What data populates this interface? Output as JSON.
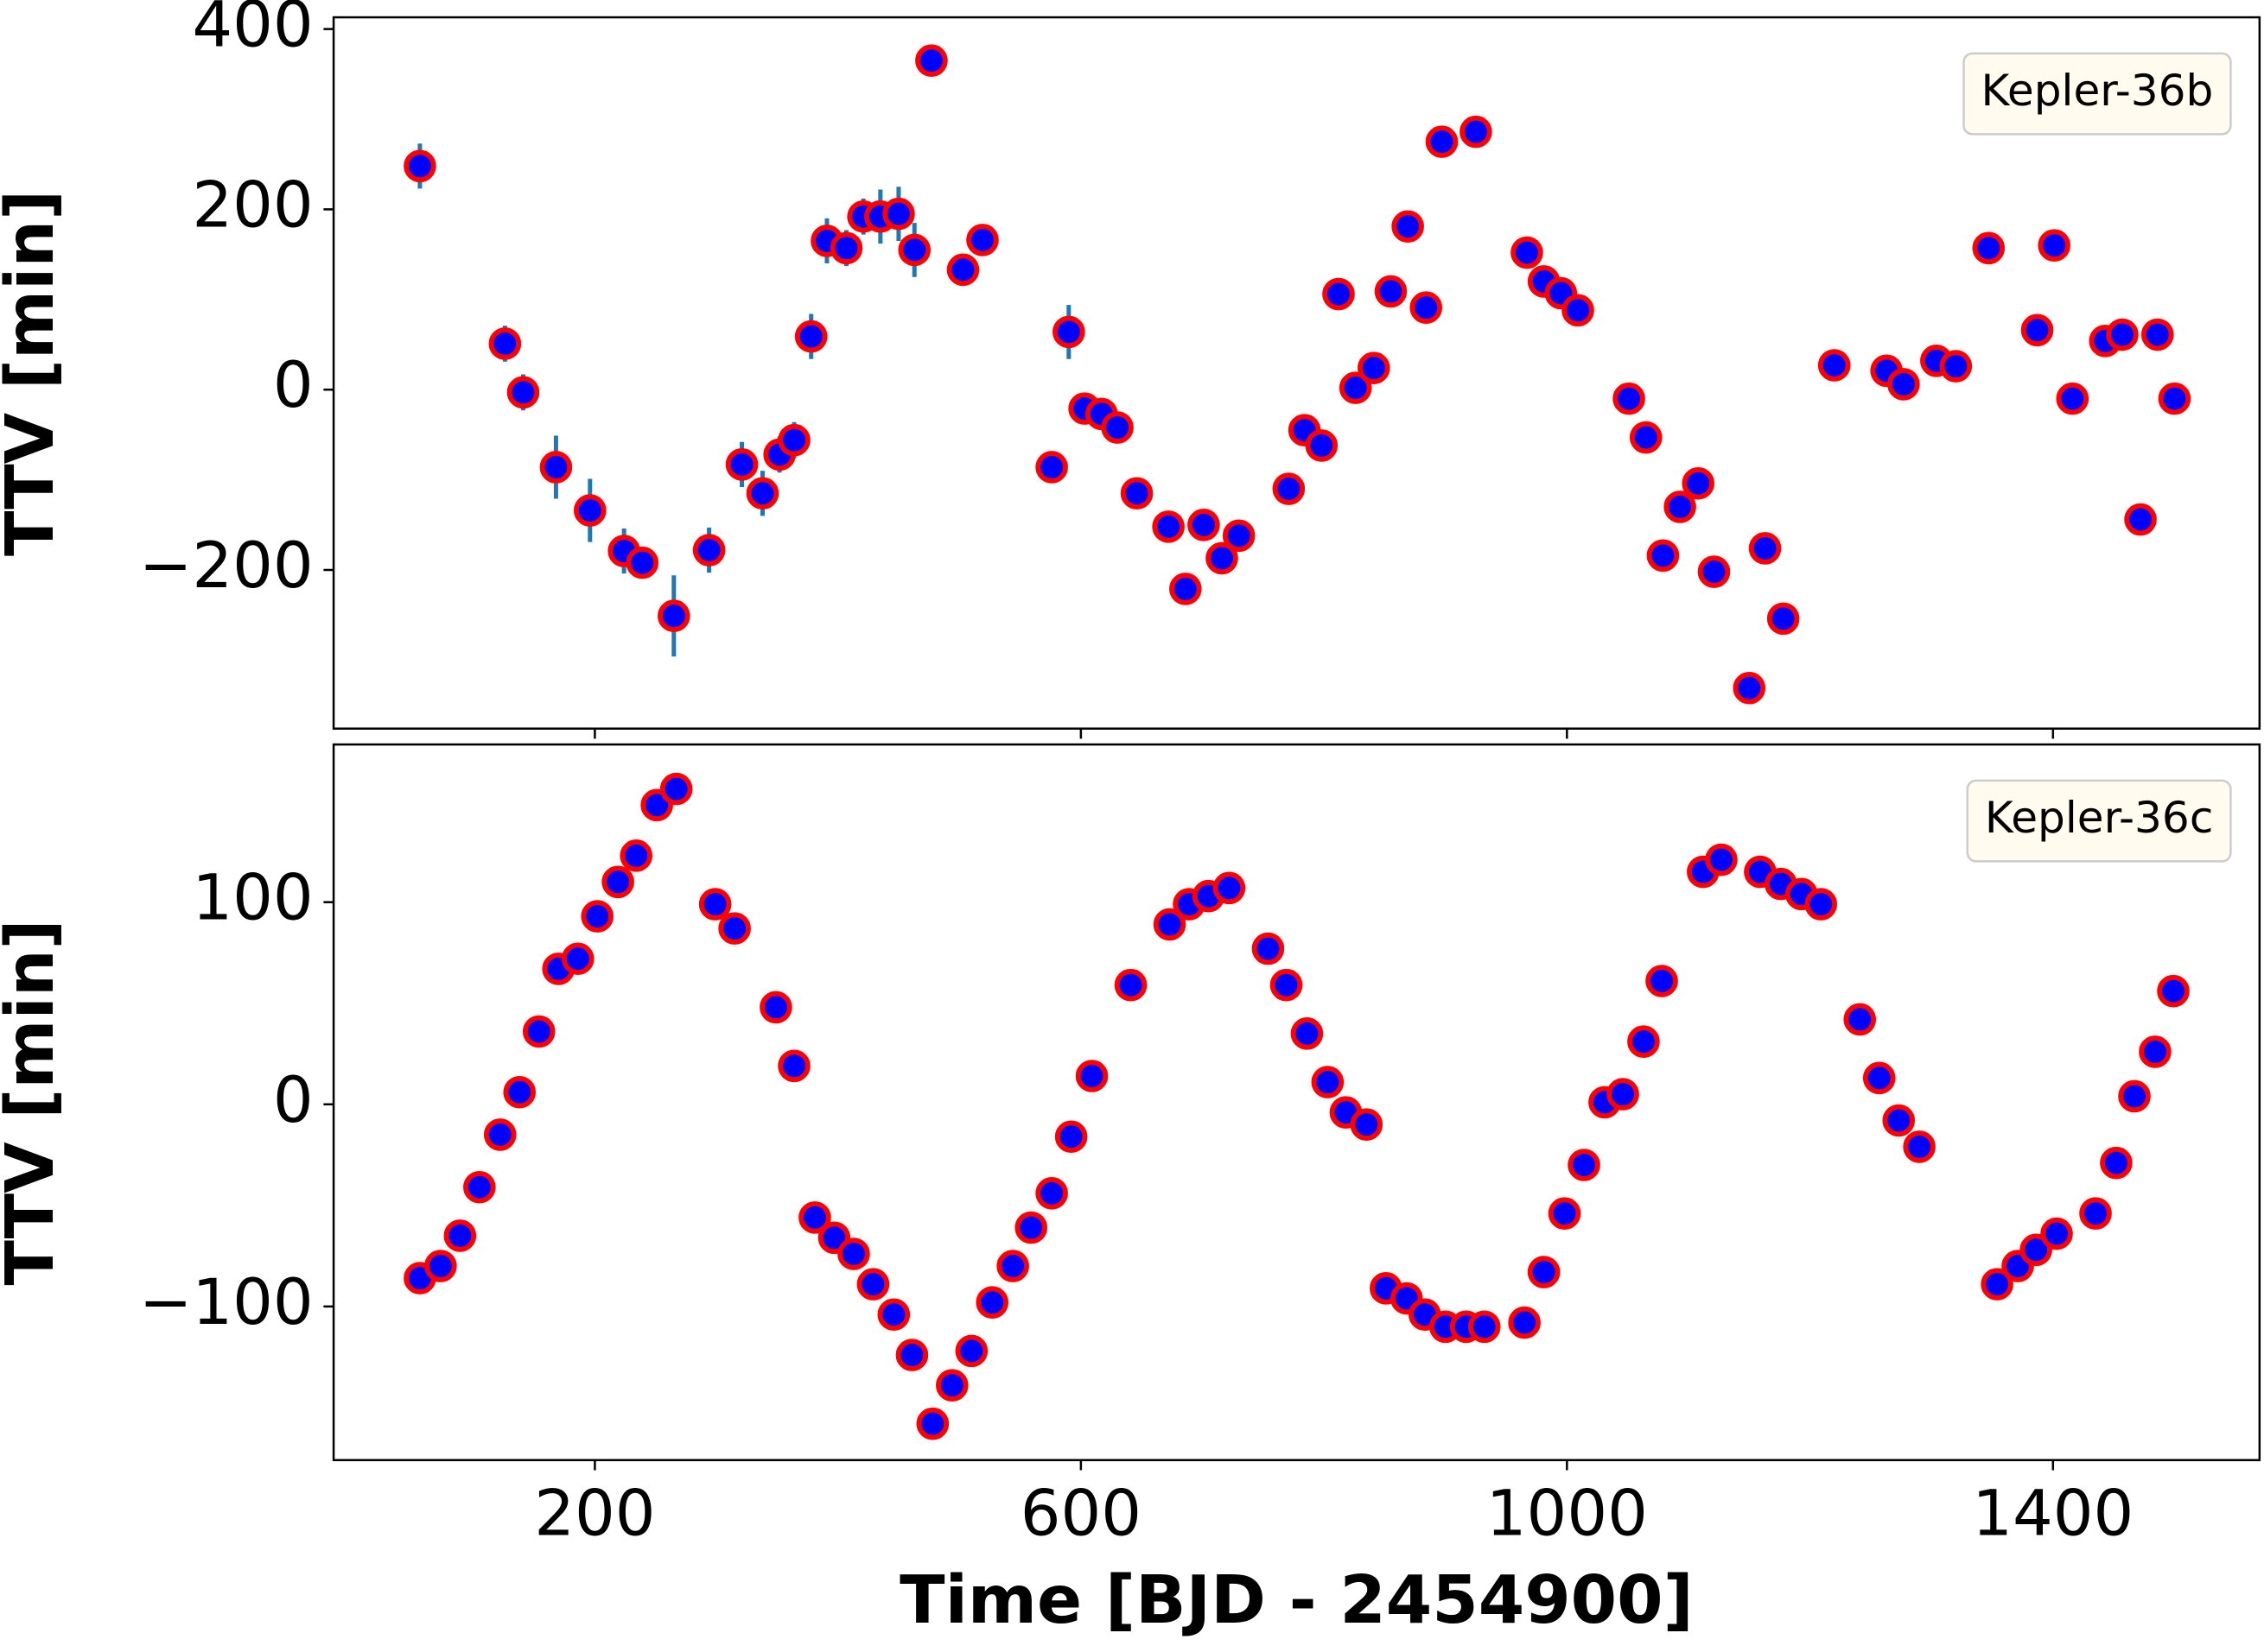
{
  "chart_data": [
    {
      "type": "scatter",
      "ylabel": "TTV [min]",
      "xlim": [
        -15,
        1570
      ],
      "ylim": [
        -376,
        413
      ],
      "yticks": [
        {
          "value": -200,
          "label": "−200"
        },
        0,
        200,
        400
      ],
      "legend": "upper right",
      "series": [
        {
          "name": "Kepler-36b",
          "color": "#0000ff",
          "edgecolor": "#ff0000",
          "error_color": "#1f77b4",
          "x": [
            56,
            126,
            141,
            168,
            196,
            224,
            239,
            265,
            294,
            321,
            338,
            352,
            364,
            378,
            391,
            407,
            421,
            435,
            450,
            463,
            477,
            503,
            519,
            576,
            590,
            603,
            617,
            630,
            646,
            672,
            686,
            701,
            716,
            730,
            771,
            784,
            798,
            812,
            826,
            841,
            855,
            869,
            884,
            897,
            925,
            967,
            981,
            995,
            1009,
            1051,
            1065,
            1079,
            1093,
            1108,
            1121,
            1150,
            1163,
            1178,
            1220,
            1263,
            1277,
            1304,
            1320,
            1347,
            1387,
            1401,
            1416,
            1443,
            1457,
            1472,
            1486,
            1500
          ],
          "values": [
            248,
            51,
            -3,
            -86,
            -134,
            -179,
            -192,
            -251,
            -178,
            -83,
            -115,
            -72,
            -56,
            59,
            165,
            157,
            192,
            192,
            195,
            155,
            365,
            133,
            166,
            -86,
            64,
            -21,
            -27,
            -42,
            -115,
            -152,
            -221,
            -150,
            -187,
            -162,
            -110,
            -45,
            -62,
            106,
            2,
            24,
            109,
            181,
            91,
            275,
            286,
            152,
            120,
            107,
            88,
            -10,
            -53,
            -184,
            -130,
            -104,
            -202,
            -331,
            -176,
            -254,
            27,
            21,
            6,
            32,
            26,
            157,
            66,
            160,
            -10,
            54,
            61,
            -144,
            61,
            -10
          ],
          "errors": [
            25,
            20,
            20,
            35,
            35,
            25,
            12,
            45,
            25,
            25,
            25,
            20,
            20,
            25,
            25,
            20,
            20,
            30,
            30,
            30,
            5,
            10,
            5,
            5,
            30,
            5,
            5,
            5,
            5,
            5,
            5,
            5,
            5,
            5,
            5,
            5,
            5,
            5,
            5,
            5,
            5,
            5,
            5,
            5,
            5,
            5,
            5,
            5,
            5,
            5,
            5,
            5,
            5,
            5,
            5,
            5,
            5,
            5,
            5,
            5,
            12,
            5,
            5,
            5,
            5,
            5,
            5,
            5,
            5,
            5,
            5,
            5
          ]
        }
      ]
    },
    {
      "type": "scatter",
      "ylabel": "TTV [min]",
      "xlabel": "Time [BJD - 2454900]",
      "xlim": [
        -15,
        1570
      ],
      "ylim": [
        -176,
        178
      ],
      "xticks": [
        200,
        600,
        1000,
        1400
      ],
      "yticks": [
        {
          "value": -100,
          "label": "−100"
        },
        0,
        100
      ],
      "legend": "upper right",
      "series": [
        {
          "name": "Kepler-36c",
          "color": "#0000ff",
          "edgecolor": "#ff0000",
          "x": [
            56,
            73,
            89,
            105,
            122,
            138,
            154,
            170,
            186,
            202,
            219,
            234,
            251,
            267,
            299,
            315,
            349,
            364,
            381,
            397,
            413,
            429,
            446,
            461,
            478,
            494,
            510,
            527,
            544,
            559,
            576,
            592,
            609,
            641,
            673,
            689,
            705,
            722,
            754,
            769,
            786,
            803,
            818,
            835,
            851,
            868,
            883,
            900,
            917,
            932,
            965,
            981,
            998,
            1014,
            1031,
            1046,
            1063,
            1078,
            1112,
            1127,
            1159,
            1176,
            1193,
            1209,
            1241,
            1257,
            1273,
            1290,
            1354,
            1371,
            1386,
            1403,
            1435,
            1452,
            1467,
            1484,
            1499
          ],
          "values": [
            -86,
            -80,
            -65,
            -41,
            -15,
            6,
            36,
            67,
            72,
            93,
            110,
            123,
            148,
            156,
            99,
            87,
            48,
            19,
            -56,
            -66,
            -74,
            -89,
            -104,
            -124,
            -158,
            -139,
            -122,
            -98,
            -80,
            -61,
            -44,
            -16,
            14,
            59,
            89,
            99,
            103,
            107,
            77,
            59,
            35,
            11,
            -4,
            -10,
            -91,
            -96,
            -104,
            -110,
            -110,
            -110,
            -108,
            -83,
            -54,
            -30,
            1,
            5,
            31,
            61,
            115,
            121,
            115,
            109,
            104,
            99,
            42,
            13,
            -8,
            -21,
            -89,
            -80,
            -72,
            -64,
            -54,
            -29,
            4,
            26,
            56
          ]
        }
      ]
    }
  ]
}
